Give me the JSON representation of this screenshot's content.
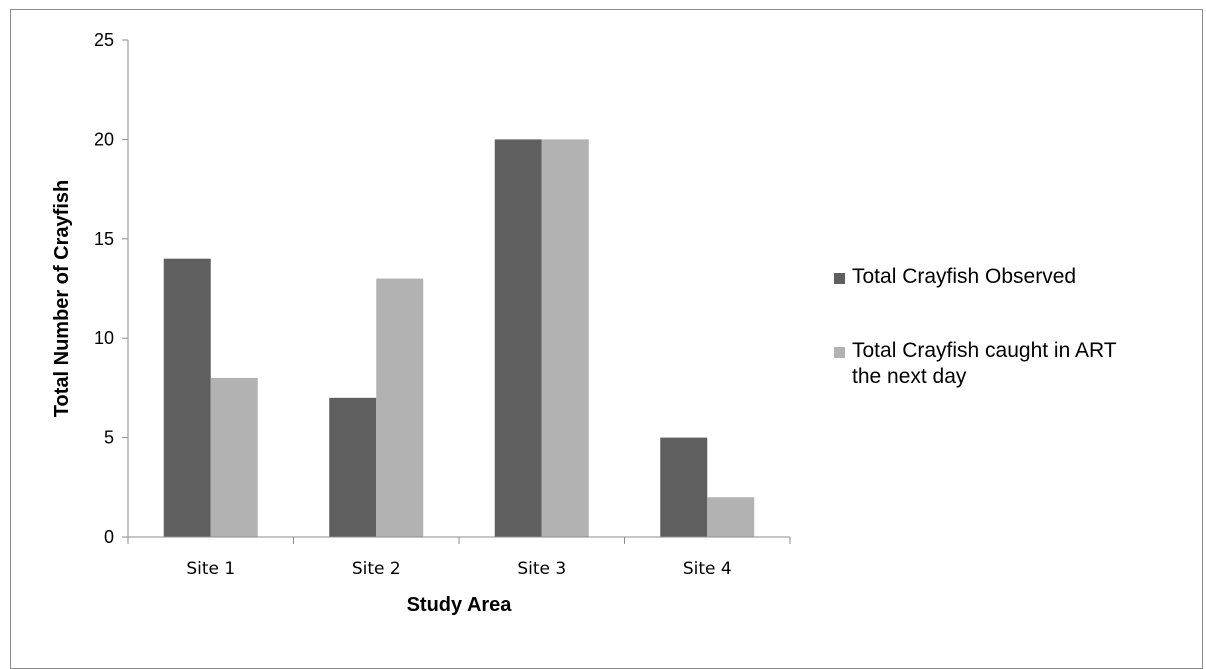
{
  "chart_data": {
    "type": "bar",
    "title": "",
    "xlabel": "Study Area",
    "ylabel": "Total Number of Crayfish",
    "categories": [
      "Site 1",
      "Site 2",
      "Site 3",
      "Site 4"
    ],
    "series": [
      {
        "name": "Total Crayfish Observed",
        "values": [
          14,
          7,
          20,
          5
        ],
        "color": "#5f5f5f"
      },
      {
        "name": "Total Crayfish caught in ART the next day",
        "values": [
          8,
          13,
          20,
          2
        ],
        "color": "#b2b2b2"
      }
    ],
    "ylim": [
      0,
      25
    ],
    "yticks": [
      "0",
      "5",
      "10",
      "15",
      "20",
      "25"
    ],
    "grid": false,
    "legend_position": "right",
    "legend": {
      "entries": [
        {
          "lines": [
            "Total Crayfish Observed"
          ]
        },
        {
          "lines": [
            "Total Crayfish caught in ART",
            "the next day"
          ]
        }
      ]
    }
  }
}
